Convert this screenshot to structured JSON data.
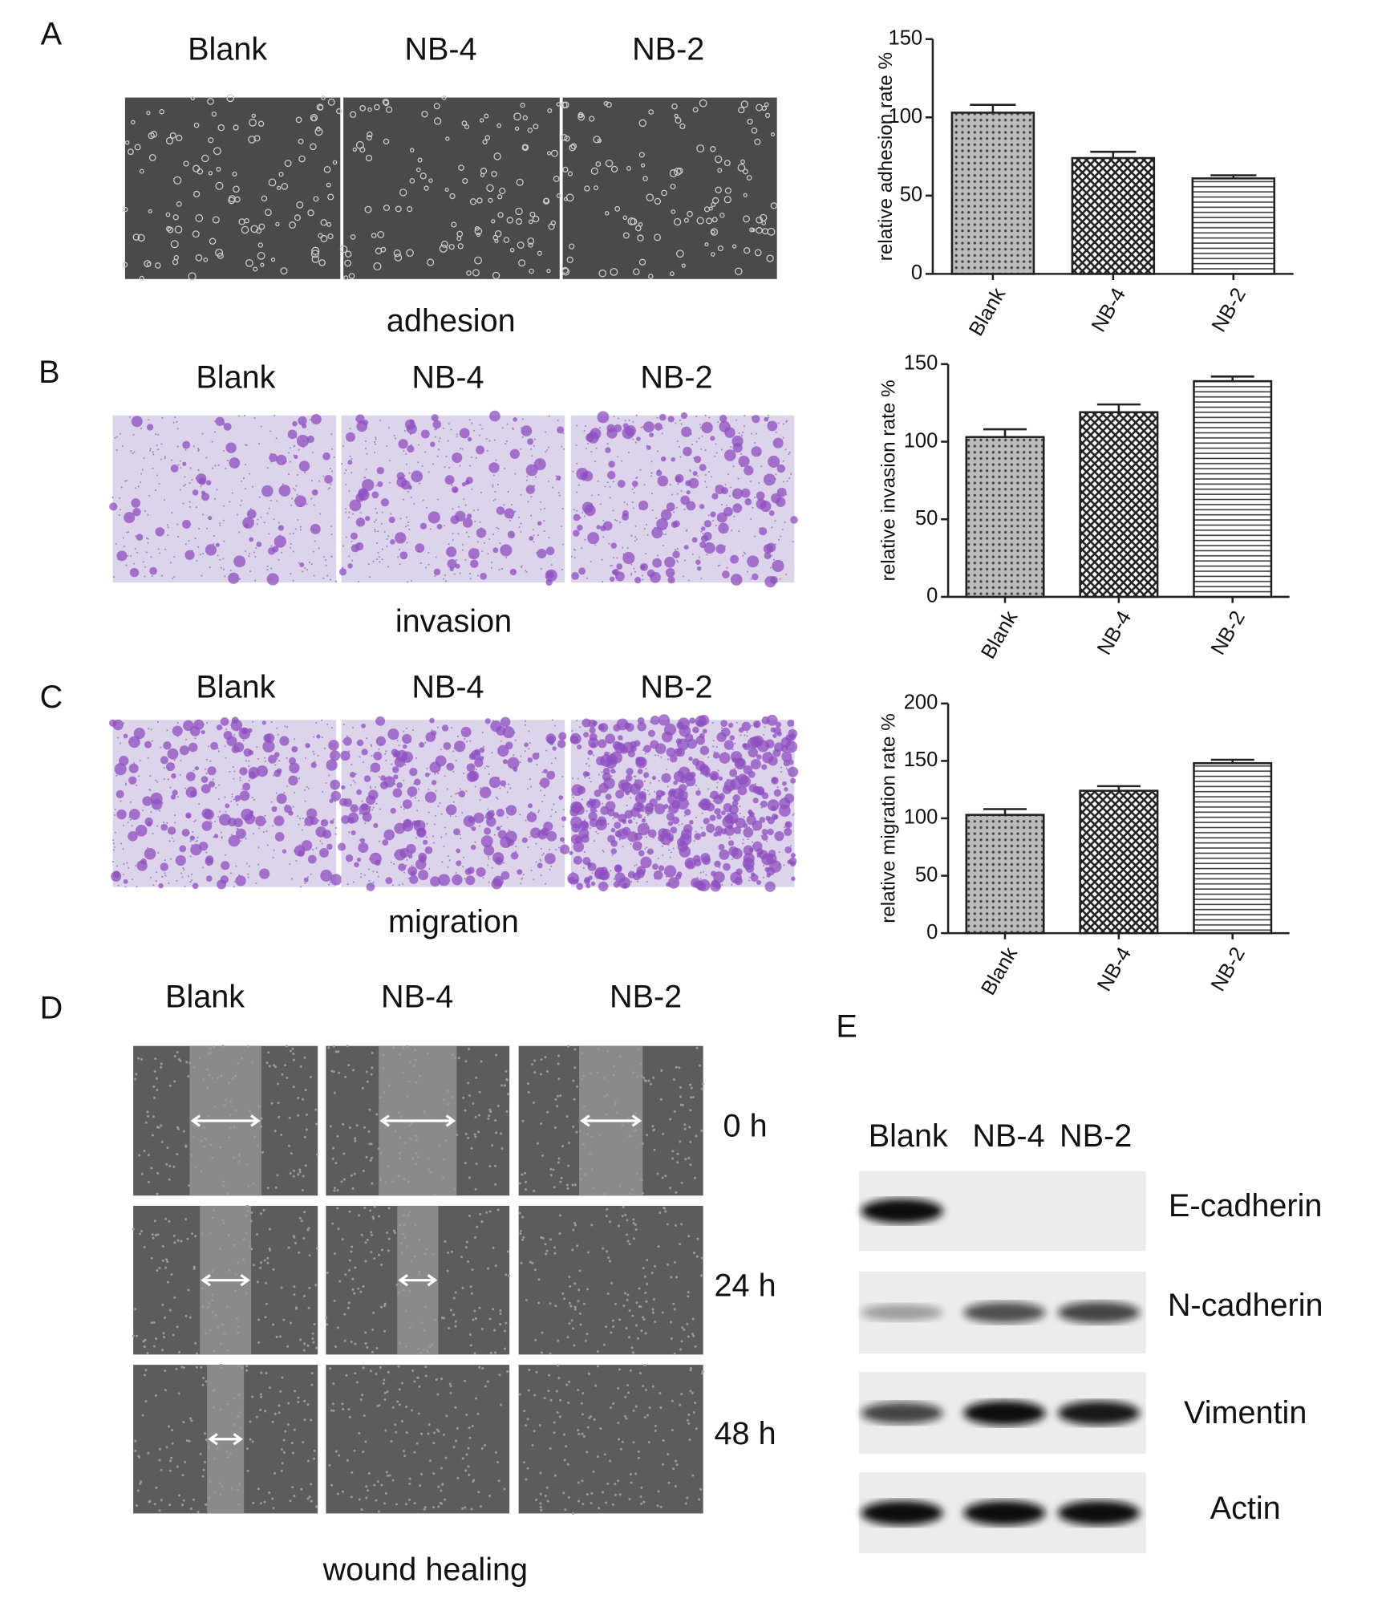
{
  "chart_data": [
    {
      "type": "bar",
      "ylabel": "relative adhesion rate %",
      "categories": [
        "Blank",
        "NB-4",
        "NB-2"
      ],
      "values": [
        103,
        74,
        61
      ],
      "errors": [
        5,
        4,
        2
      ],
      "ylim": [
        0,
        150
      ],
      "yticks": [
        0,
        50,
        100,
        150
      ]
    },
    {
      "type": "bar",
      "ylabel": "relative invasion rate %",
      "categories": [
        "Blank",
        "NB-4",
        "NB-2"
      ],
      "values": [
        103,
        119,
        139
      ],
      "errors": [
        5,
        5,
        3
      ],
      "ylim": [
        0,
        150
      ],
      "yticks": [
        0,
        50,
        100,
        150
      ]
    },
    {
      "type": "bar",
      "ylabel": "relative migration rate %",
      "categories": [
        "Blank",
        "NB-4",
        "NB-2"
      ],
      "values": [
        103,
        124,
        148
      ],
      "errors": [
        5,
        4,
        3
      ],
      "ylim": [
        0,
        200
      ],
      "yticks": [
        0,
        50,
        100,
        150,
        200
      ]
    }
  ],
  "panel_labels": [
    "A",
    "B",
    "C",
    "D",
    "E"
  ],
  "adhesion": {
    "columns": [
      "Blank",
      "NB-4",
      "NB-2"
    ],
    "caption": "adhesion"
  },
  "invasion": {
    "columns": [
      "Blank",
      "NB-4",
      "NB-2"
    ],
    "caption": "invasion"
  },
  "migration": {
    "columns": [
      "Blank",
      "NB-4",
      "NB-2"
    ],
    "caption": "migration"
  },
  "wound_healing": {
    "columns": [
      "Blank",
      "NB-4",
      "NB-2"
    ],
    "times": [
      "0 h",
      "24 h",
      "48 h"
    ],
    "caption": "wound healing"
  },
  "western_blot": {
    "lanes": [
      "Blank",
      "NB-4",
      "NB-2"
    ],
    "proteins": [
      "E-cadherin",
      "N-cadherin",
      "Vimentin",
      "Actin"
    ]
  }
}
